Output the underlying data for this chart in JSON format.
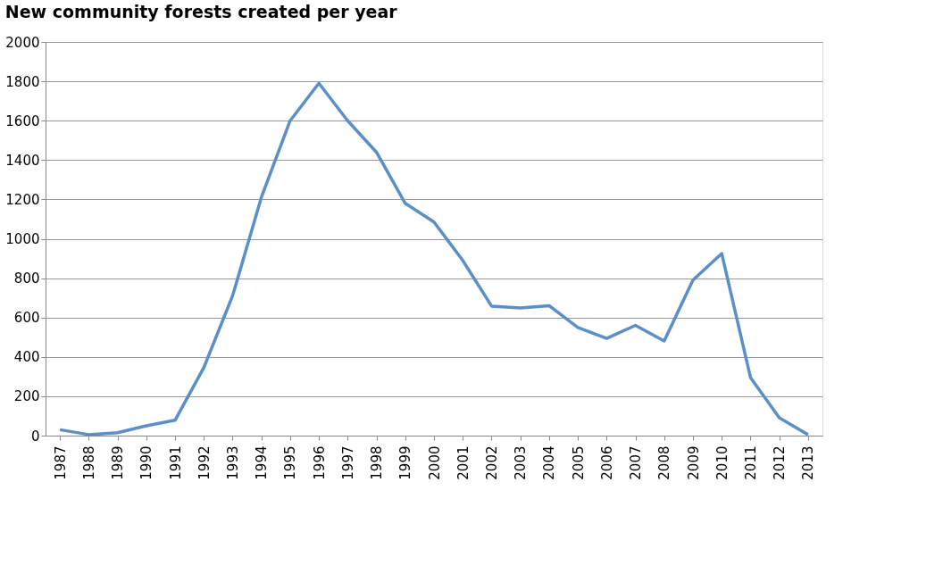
{
  "chart_data": {
    "type": "line",
    "title": "New community forests created per year",
    "categories": [
      "1987",
      "1988",
      "1989",
      "1990",
      "1991",
      "1992",
      "1993",
      "1994",
      "1995",
      "1996",
      "1997",
      "1998",
      "1999",
      "2000",
      "2001",
      "2002",
      "2003",
      "2004",
      "2005",
      "2006",
      "2007",
      "2008",
      "2009",
      "2010",
      "2011",
      "2012",
      "2013"
    ],
    "series": [
      {
        "color": "#5b8fc9",
        "values": [
          30,
          5,
          15,
          50,
          78,
          345,
          710,
          1210,
          1600,
          1790,
          1600,
          1440,
          1180,
          1085,
          890,
          658,
          648,
          660,
          549,
          494,
          560,
          481,
          790,
          925,
          295,
          91,
          5
        ]
      }
    ],
    "ylim": [
      0,
      2000
    ],
    "yticks": [
      0,
      200,
      400,
      600,
      800,
      1000,
      1200,
      1400,
      1600,
      1800,
      2000
    ],
    "grid": "y",
    "marker": "none",
    "line_style": "solid"
  }
}
